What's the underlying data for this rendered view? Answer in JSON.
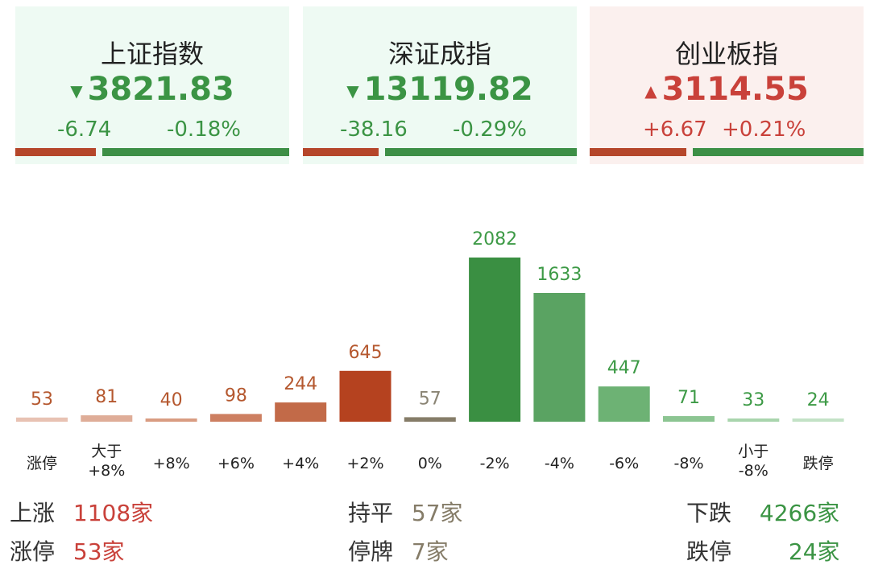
{
  "indices": [
    {
      "name": "上证指数",
      "value": "3821.83",
      "change": "-6.74",
      "pct": "-0.18%",
      "dir": "down"
    },
    {
      "name": "深证成指",
      "value": "13119.82",
      "change": "-38.16",
      "pct": "-0.29%",
      "dir": "down"
    },
    {
      "name": "创业板指",
      "value": "3114.55",
      "change": "+6.67",
      "pct": "+0.21%",
      "dir": "up"
    }
  ],
  "colors": {
    "red": "#b5462a",
    "green": "#3d8f46",
    "neutral": "#857c68"
  },
  "chart_data": {
    "type": "bar",
    "categories": [
      "涨停",
      "大于\n+8%",
      "+8%",
      "+6%",
      "+4%",
      "+2%",
      "0%",
      "-2%",
      "-4%",
      "-6%",
      "-8%",
      "小于\n-8%",
      "跌停"
    ],
    "values": [
      53,
      81,
      40,
      98,
      244,
      645,
      57,
      2082,
      1633,
      447,
      71,
      33,
      24
    ],
    "ylim": [
      0,
      2082
    ]
  },
  "stats": {
    "up_label": "上涨",
    "up_value": "1108家",
    "limit_up_label": "涨停",
    "limit_up_value": "53家",
    "flat_label": "持平",
    "flat_value": "57家",
    "halt_label": "停牌",
    "halt_value": "7家",
    "down_label": "下跌",
    "down_value": "4266家",
    "limit_down_label": "跌停",
    "limit_down_value": "24家"
  }
}
